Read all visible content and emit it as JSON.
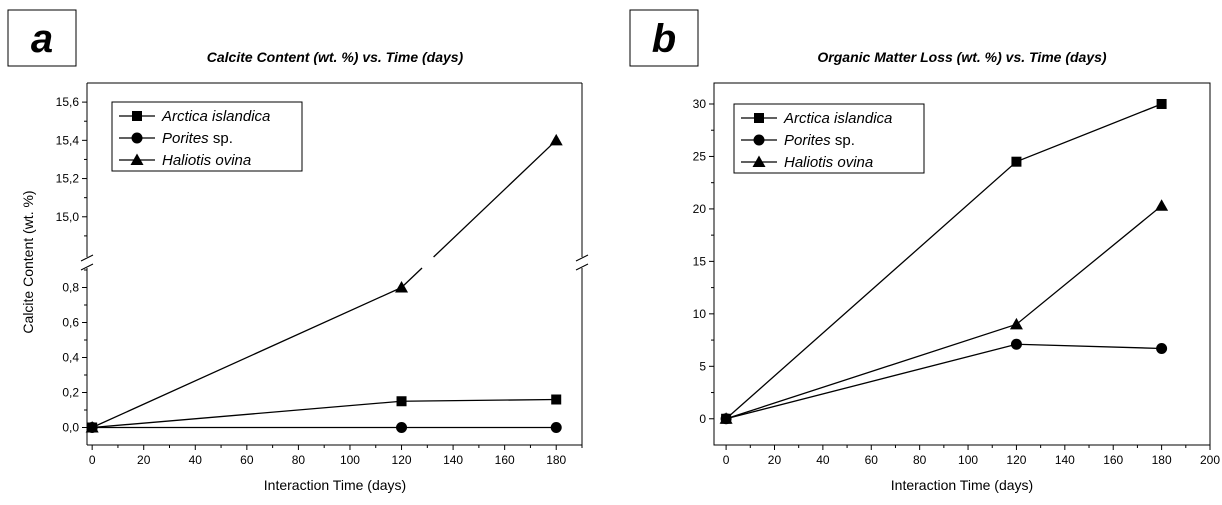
{
  "chart_data": [
    {
      "type": "line",
      "panel_label": "a",
      "title": "Calcite Content (wt. %) vs. Time (days)",
      "xlabel": "Interaction Time (days)",
      "ylabel": "Calcite Content (wt. %)",
      "xlim": [
        -2,
        190
      ],
      "ylim_lower": [
        -0.1,
        0.9
      ],
      "ylim_upper": [
        14.8,
        15.7
      ],
      "axis_break": true,
      "x_ticks": [
        "0",
        "20",
        "40",
        "60",
        "80",
        "100",
        "120",
        "140",
        "160",
        "180"
      ],
      "y_ticks_lower": [
        "0,0",
        "0,2",
        "0,4",
        "0,6",
        "0,8"
      ],
      "y_ticks_upper": [
        "15,0",
        "15,2",
        "15,4",
        "15,6"
      ],
      "legend_position": "top-left",
      "x": [
        0,
        120,
        180
      ],
      "series": [
        {
          "name": "Arctica islandica",
          "name_italic": "Arctica islandica",
          "name_plain": "",
          "marker": "square",
          "values": [
            0.0,
            0.15,
            0.16
          ]
        },
        {
          "name": "Porites sp.",
          "name_italic": "Porites",
          "name_plain": " sp.",
          "marker": "circle",
          "values": [
            0.0,
            0.0,
            0.0
          ]
        },
        {
          "name": "Haliotis ovina",
          "name_italic": "Haliotis ovina",
          "name_plain": "",
          "marker": "triangle",
          "values": [
            0.0,
            0.8,
            15.4
          ]
        }
      ]
    },
    {
      "type": "line",
      "panel_label": "b",
      "title": "Organic Matter Loss (wt. %) vs. Time (days)",
      "xlabel": "Interaction Time (days)",
      "ylabel": "",
      "xlim": [
        -5,
        200
      ],
      "ylim": [
        -2.5,
        32
      ],
      "x_ticks": [
        "0",
        "20",
        "40",
        "60",
        "80",
        "100",
        "120",
        "140",
        "160",
        "180",
        "200"
      ],
      "y_ticks": [
        "0",
        "5",
        "10",
        "15",
        "20",
        "25",
        "30"
      ],
      "legend_position": "top-left",
      "x": [
        0,
        120,
        180
      ],
      "series": [
        {
          "name": "Arctica islandica",
          "name_italic": "Arctica islandica",
          "name_plain": "",
          "marker": "square",
          "values": [
            0,
            24.5,
            30
          ]
        },
        {
          "name": "Porites sp.",
          "name_italic": "Porites",
          "name_plain": " sp.",
          "marker": "circle",
          "values": [
            0,
            7.1,
            6.7
          ]
        },
        {
          "name": "Haliotis ovina",
          "name_italic": "Haliotis ovina",
          "name_plain": "",
          "marker": "triangle",
          "values": [
            0,
            9.0,
            20.3
          ]
        }
      ]
    }
  ]
}
